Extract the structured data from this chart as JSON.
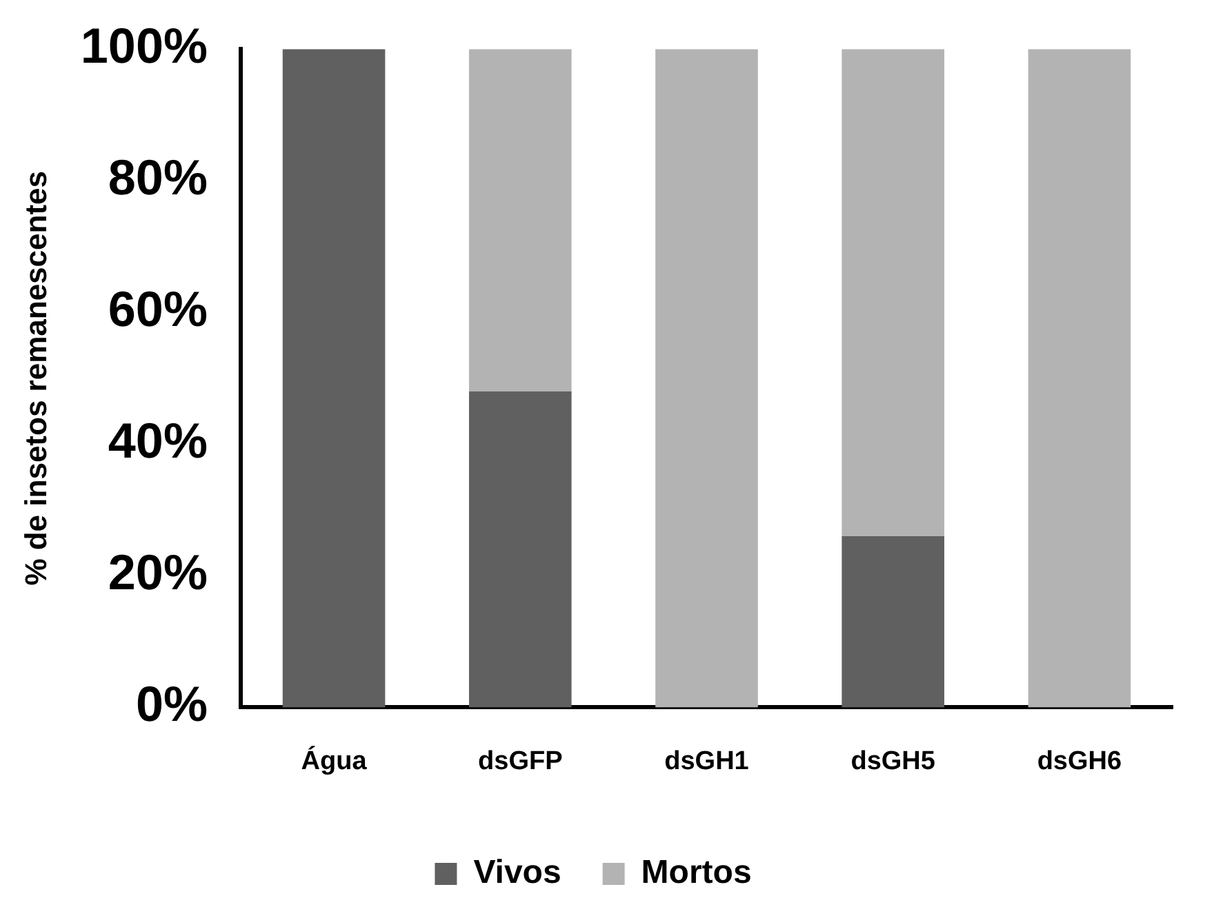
{
  "chart_data": {
    "type": "bar",
    "stacked": true,
    "ylabel": "% de insetos remanescentes",
    "categories": [
      "Água",
      "dsGFP",
      "dsGH1",
      "dsGH5",
      "dsGH6"
    ],
    "series": [
      {
        "name": "Vivos",
        "color": "#606060",
        "values": [
          100,
          48,
          0,
          26,
          0
        ]
      },
      {
        "name": "Mortos",
        "color": "#b3b3b3",
        "values": [
          0,
          52,
          100,
          74,
          100
        ]
      }
    ],
    "ylim": [
      0,
      100
    ],
    "yticks": [
      {
        "value": 0,
        "label": "0%"
      },
      {
        "value": 20,
        "label": "20%"
      },
      {
        "value": 40,
        "label": "40%"
      },
      {
        "value": 60,
        "label": "60%"
      },
      {
        "value": 80,
        "label": "80%"
      },
      {
        "value": 100,
        "label": "100%"
      }
    ],
    "grid": false,
    "legend": "bottom"
  }
}
